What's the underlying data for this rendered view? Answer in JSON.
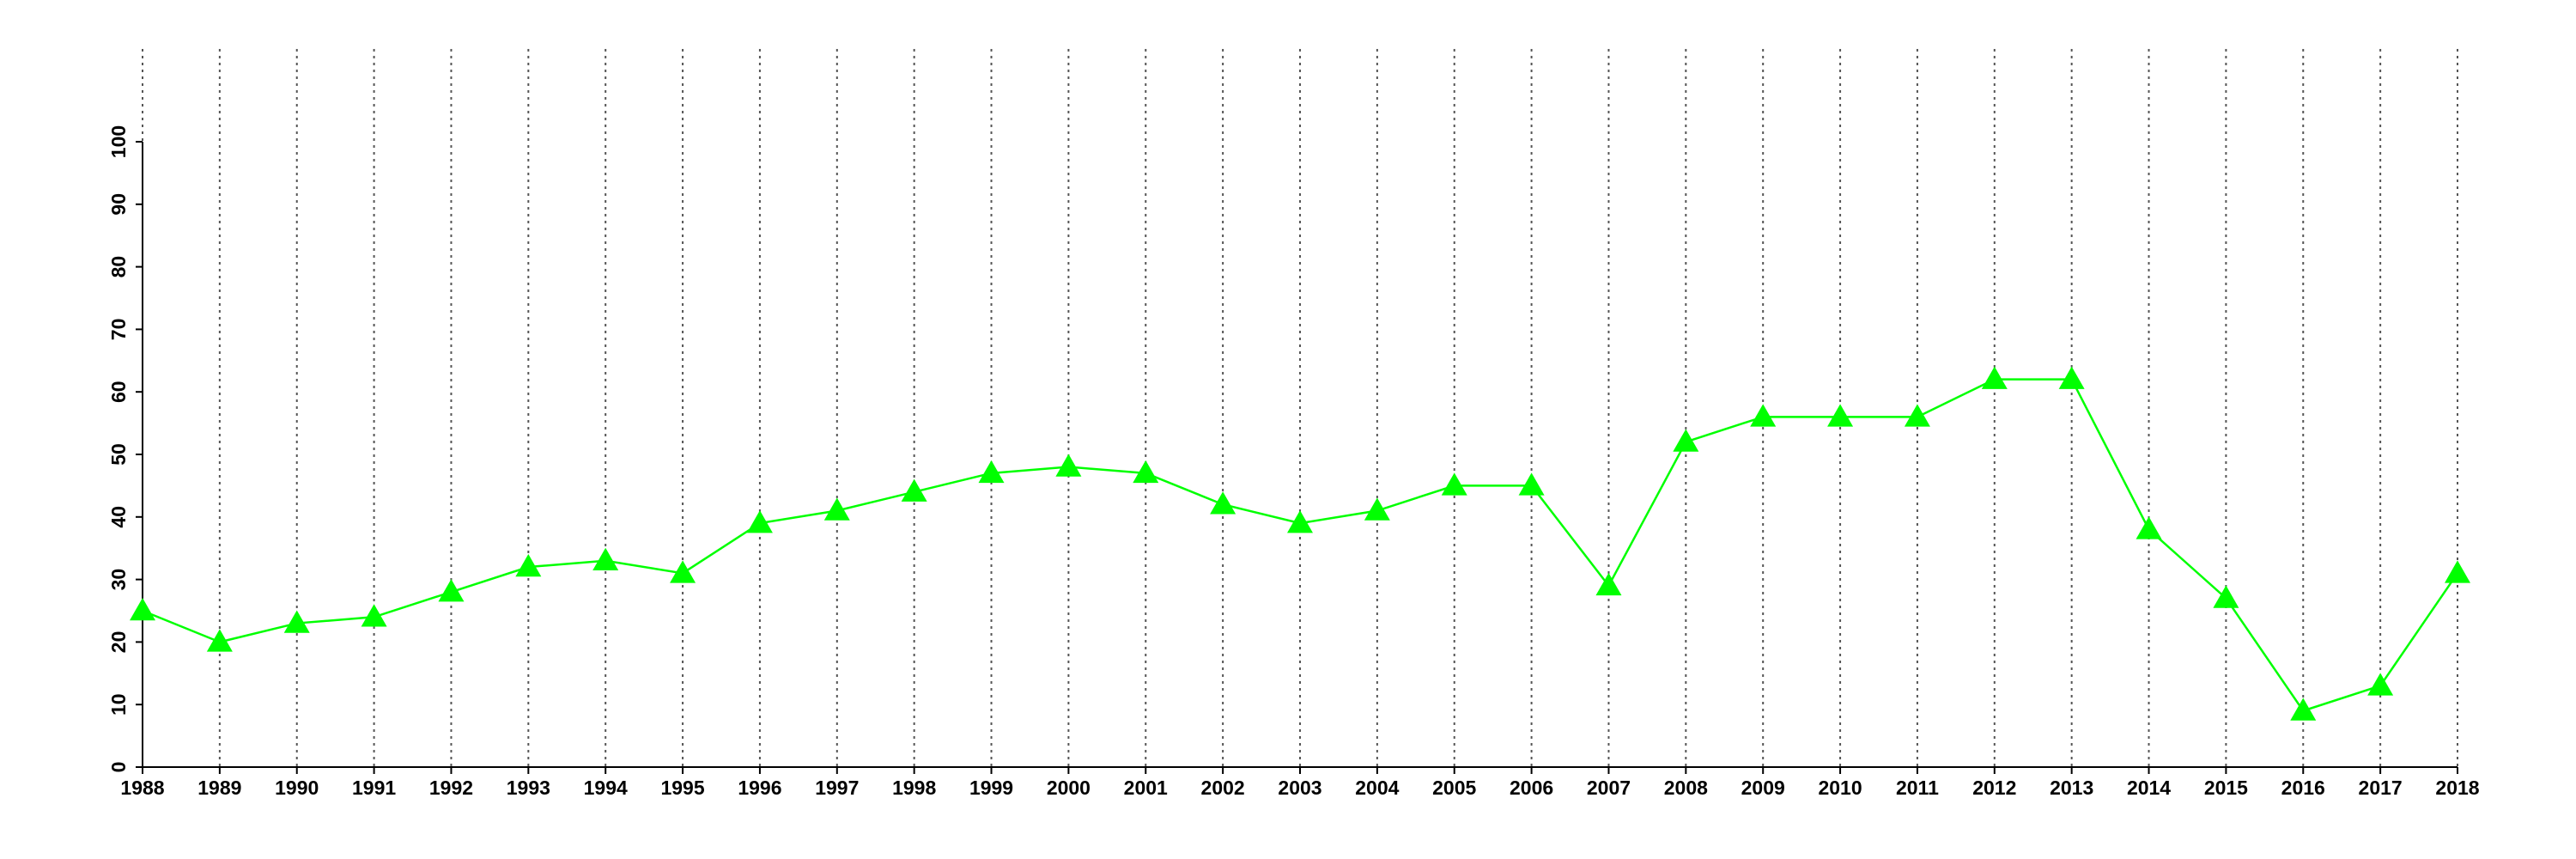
{
  "chart_data": {
    "type": "line",
    "x": [
      1988,
      1989,
      1990,
      1991,
      1992,
      1993,
      1994,
      1995,
      1996,
      1997,
      1998,
      1999,
      2000,
      2001,
      2002,
      2003,
      2004,
      2005,
      2006,
      2007,
      2008,
      2009,
      2010,
      2011,
      2012,
      2013,
      2014,
      2015,
      2016,
      2017,
      2018
    ],
    "series": [
      {
        "color": "#00ff00",
        "marker": "triangle",
        "values": [
          25,
          20,
          23,
          24,
          28,
          32,
          33,
          31,
          39,
          41,
          44,
          47,
          48,
          47,
          42,
          39,
          41,
          45,
          45,
          29,
          52,
          56,
          56,
          56,
          62,
          62,
          38,
          27,
          9,
          13,
          31
        ]
      }
    ],
    "xlim": [
      1988,
      2018
    ],
    "xticks": [
      1988,
      1989,
      1990,
      1991,
      1992,
      1993,
      1994,
      1995,
      1996,
      1997,
      1998,
      1999,
      2000,
      2001,
      2002,
      2003,
      2004,
      2005,
      2006,
      2007,
      2008,
      2009,
      2010,
      2011,
      2012,
      2013,
      2014,
      2015,
      2016,
      2017,
      2018
    ],
    "ylim": [
      0,
      100
    ],
    "yticks": [
      0,
      10,
      20,
      30,
      40,
      50,
      60,
      70,
      80,
      90,
      100
    ],
    "xgrid": true
  }
}
